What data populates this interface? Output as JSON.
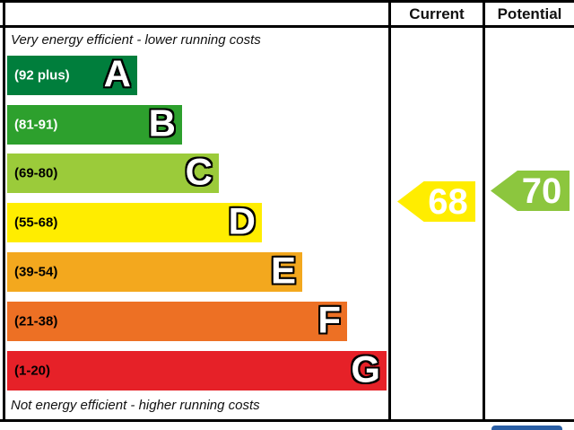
{
  "header": {
    "current_label": "Current",
    "potential_label": "Potential"
  },
  "chart_data": {
    "type": "bar",
    "description": "Energy efficiency rating chart (EPC style) with bands A-G",
    "top_caption": "Very energy efficient - lower running costs",
    "bottom_caption": "Not energy efficient - higher running costs",
    "bands": [
      {
        "letter": "A",
        "range": "(92 plus)",
        "min": 92,
        "max": 100,
        "color": "#007e3c",
        "label_color": "#ffffff"
      },
      {
        "letter": "B",
        "range": "(81-91)",
        "min": 81,
        "max": 91,
        "color": "#2da02d",
        "label_color": "#ffffff"
      },
      {
        "letter": "C",
        "range": "(69-80)",
        "min": 69,
        "max": 80,
        "color": "#9bcb3a",
        "label_color": "#000000"
      },
      {
        "letter": "D",
        "range": "(55-68)",
        "min": 55,
        "max": 68,
        "color": "#ffed00",
        "label_color": "#000000"
      },
      {
        "letter": "E",
        "range": "(39-54)",
        "min": 39,
        "max": 54,
        "color": "#f3a81e",
        "label_color": "#000000"
      },
      {
        "letter": "F",
        "range": "(21-38)",
        "min": 21,
        "max": 38,
        "color": "#ed7024",
        "label_color": "#000000"
      },
      {
        "letter": "G",
        "range": "(1-20)",
        "min": 1,
        "max": 20,
        "color": "#e62128",
        "label_color": "#000000"
      }
    ],
    "current": {
      "value": 68,
      "band": "D",
      "color": "#ffed00"
    },
    "potential": {
      "value": 70,
      "band": "C",
      "color": "#8cc63e"
    }
  },
  "colors": {
    "border": "#000000",
    "bottom_blue_box": "#2a5fa5"
  }
}
